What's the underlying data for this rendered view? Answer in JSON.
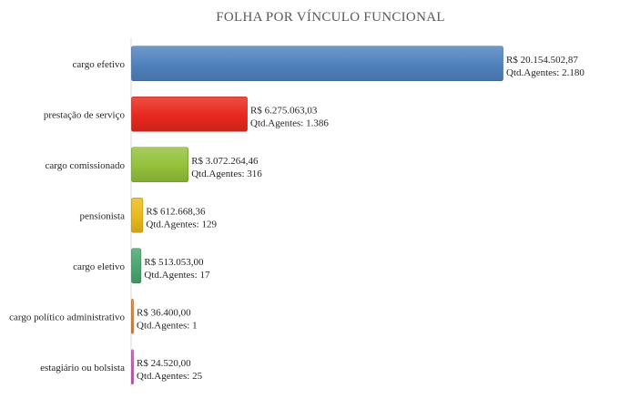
{
  "chart_data": {
    "type": "bar",
    "orientation": "horizontal",
    "title": "FOLHA POR VÍNCULO FUNCIONAL",
    "xlabel": "",
    "ylabel": "",
    "grid": false,
    "legend": "none",
    "categories": [
      "cargo efetivo",
      "prestação de serviço",
      "cargo comissionado",
      "pensionista",
      "cargo eletivo",
      "cargo político administrativo",
      "estagiário ou bolsista"
    ],
    "values": [
      20154502.87,
      6275063.03,
      3072264.46,
      612668.36,
      513053.0,
      36400.0,
      24520.0
    ],
    "agents": [
      2180,
      1386,
      316,
      129,
      17,
      1,
      25
    ],
    "value_labels": [
      "R$ 20.154.502,87",
      "R$ 6.275.063,03",
      "R$ 3.072.264,46",
      "R$ 612.668,36",
      "R$ 513.053,00",
      "R$ 36.400,00",
      "R$ 24.520,00"
    ],
    "agent_labels": [
      "Qtd.Agentes: 2.180",
      "Qtd.Agentes: 1.386",
      "Qtd.Agentes: 316",
      "Qtd.Agentes: 129",
      "Qtd.Agentes: 17",
      "Qtd.Agentes: 1",
      "Qtd.Agentes: 25"
    ],
    "colors": [
      "#4f81bd",
      "#e8281e",
      "#93c13a",
      "#e9b91a",
      "#4aa56f",
      "#e67e22",
      "#d24fb4"
    ]
  }
}
